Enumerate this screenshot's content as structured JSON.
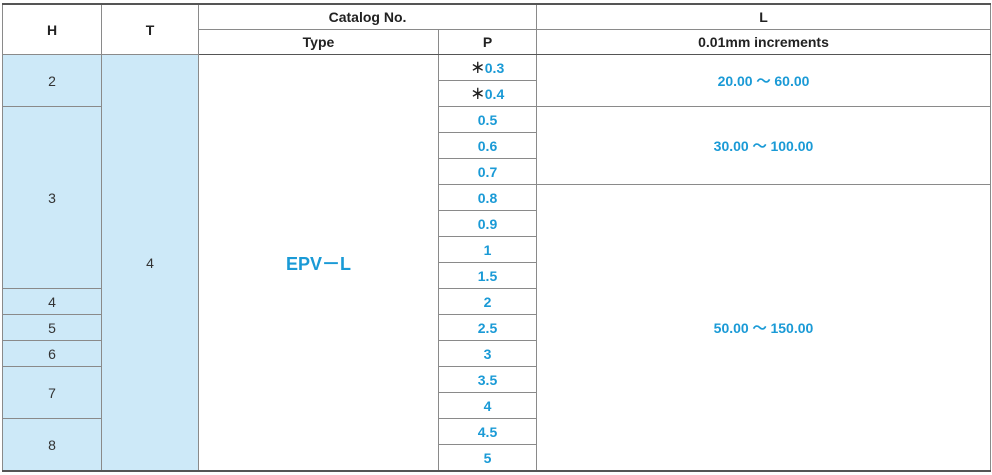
{
  "header": {
    "h": "H",
    "t": "T",
    "catalog": "Catalog No.",
    "type": "Type",
    "p": "P",
    "l": "L",
    "l_sub": "0.01mm increments"
  },
  "h": [
    "2",
    "3",
    "4",
    "5",
    "6",
    "7",
    "8"
  ],
  "t": "4",
  "type": "EPV－L",
  "p": [
    {
      "note": "＊",
      "value": "0.3"
    },
    {
      "note": "＊",
      "value": "0.4"
    },
    "0.5",
    "0.6",
    "0.7",
    "0.8",
    "0.9",
    "1",
    "1.5",
    "2",
    "2.5",
    "3",
    "3.5",
    "4",
    "4.5",
    "5"
  ],
  "l": [
    "20.00 ～  60.00",
    "30.00 ～ 100.00",
    "50.00 ～ 150.00"
  ]
}
